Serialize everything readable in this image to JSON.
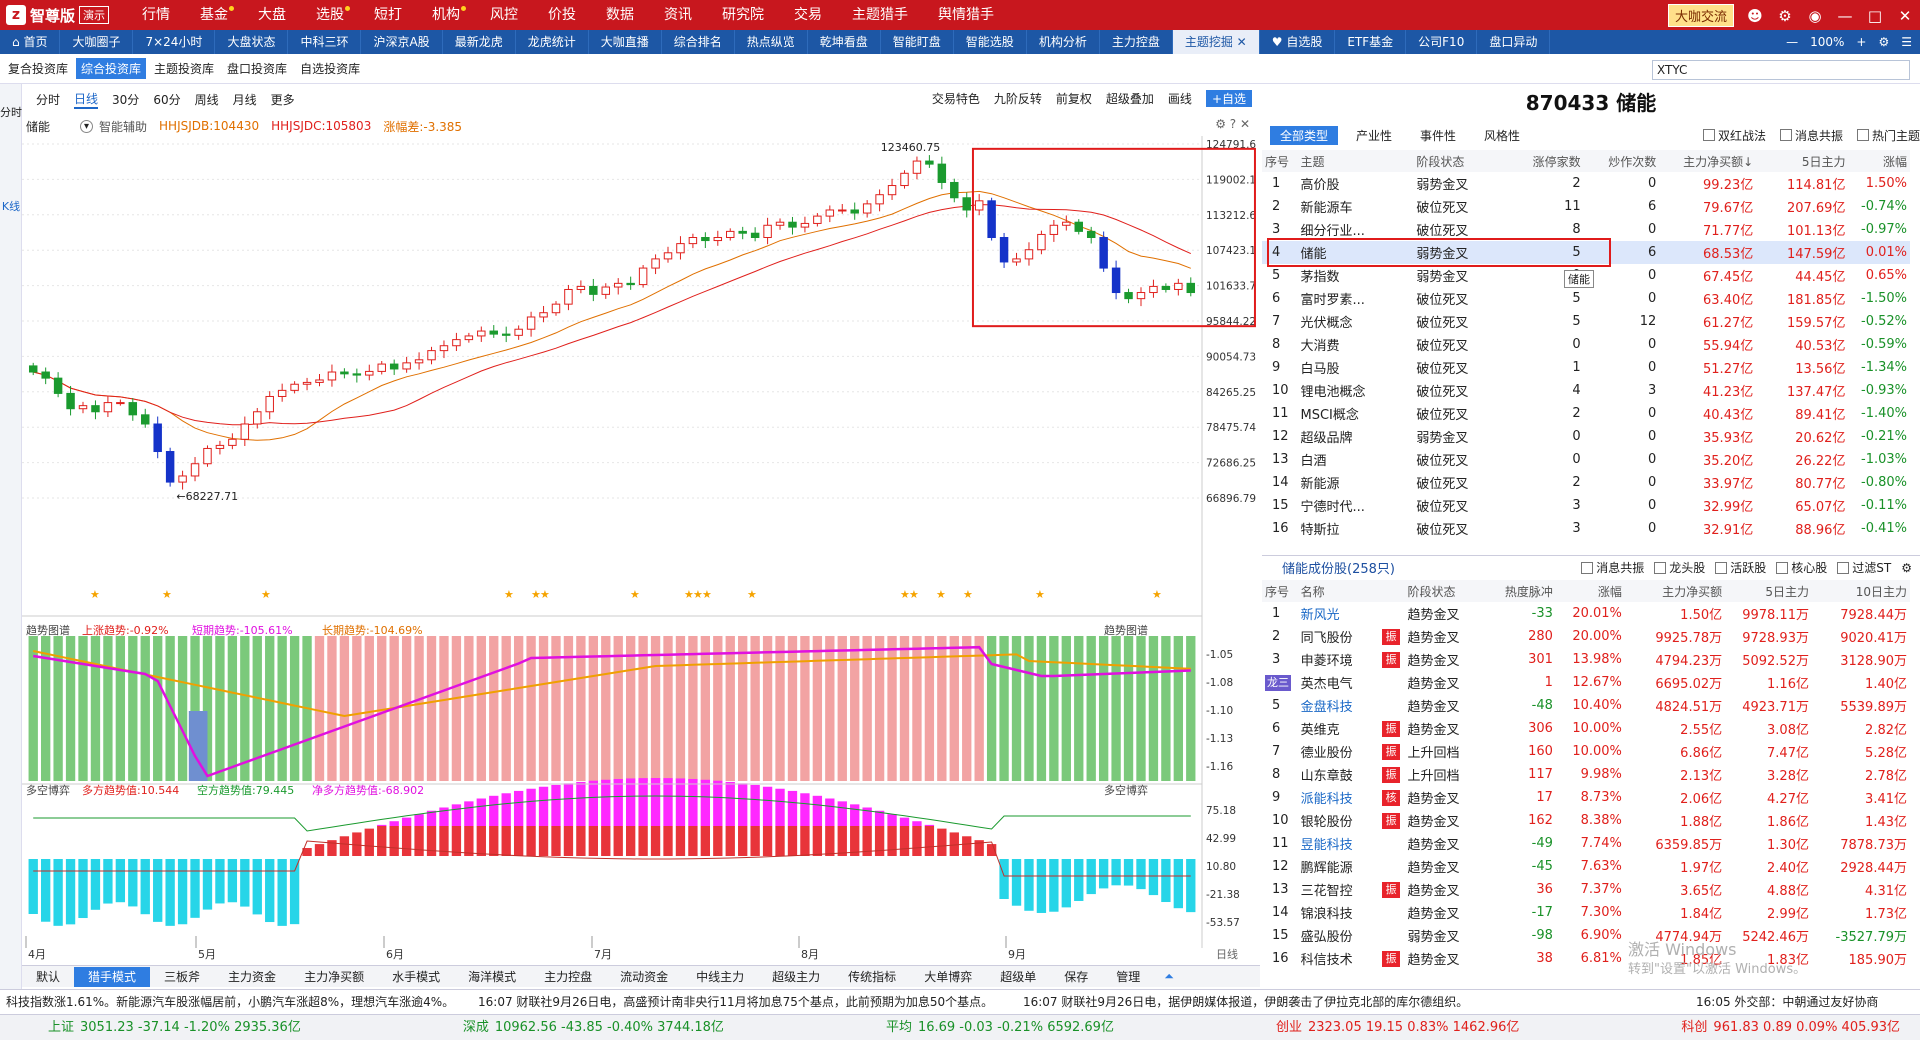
{
  "app": {
    "logo": "智尊版",
    "logo_glyph": "z",
    "demo": "演示"
  },
  "top_menu": [
    {
      "label": "行情",
      "dot": false
    },
    {
      "label": "基金",
      "dot": true
    },
    {
      "label": "大盘",
      "dot": false
    },
    {
      "label": "选股",
      "dot": true
    },
    {
      "label": "短打",
      "dot": false
    },
    {
      "label": "机构",
      "dot": true
    },
    {
      "label": "风控",
      "dot": false
    },
    {
      "label": "价投",
      "dot": false
    },
    {
      "label": "数据",
      "dot": false
    },
    {
      "label": "资讯",
      "dot": false
    },
    {
      "label": "研究院",
      "dot": false
    },
    {
      "label": "交易",
      "dot": false
    },
    {
      "label": "主题猎手",
      "dot": false
    },
    {
      "label": "舆情猎手",
      "dot": false
    }
  ],
  "top_right": {
    "community": "大咖交流"
  },
  "nav_tabs": [
    "首页",
    "大咖圈子",
    "7×24小时",
    "大盘状态",
    "中科三环",
    "沪深京A股",
    "最新龙虎",
    "龙虎统计",
    "大咖直播",
    "综合排名",
    "热点纵览",
    "乾坤看盘",
    "智能盯盘",
    "智能选股",
    "机构分析",
    "主力控盘",
    "主题挖掘",
    "自选股",
    "ETF基金",
    "公司F10",
    "盘口异动"
  ],
  "nav_active": "主题挖掘",
  "zoom": "100%",
  "sub_tabs": [
    "复合投资库",
    "综合投资库",
    "主题投资库",
    "盘口投资库",
    "自选投资库"
  ],
  "sub_active": "综合投资库",
  "search": {
    "value": "XTYC"
  },
  "left_strip": [
    "分时",
    "K线"
  ],
  "chart_toolbar": {
    "periods": [
      "分时",
      "日线",
      "30分",
      "60分",
      "周线",
      "月线",
      "更多"
    ],
    "active": "日线",
    "right": [
      "交易特色",
      "九阶反转",
      "前复权",
      "超级叠加",
      "画线",
      "+自选"
    ]
  },
  "kinfo": {
    "name": "储能",
    "assist": "智能辅助",
    "hh1": "HHJSJDB:104430",
    "hh2": "HHJSJDC:105803",
    "ratio": "涨幅差:-3.385"
  },
  "panel_titles": {
    "trend": "趋势图谱",
    "trend_up": "上涨趋势:-0.92%",
    "trend_short": "短期趋势:-105.61%",
    "trend_long": "长期趋势:-104.69%",
    "game": "多空博弈",
    "game_long": "多方趋势值:10.544",
    "game_short": "空方趋势值:79.445",
    "game_net": "净多方趋势值:-68.902"
  },
  "months": [
    "4月",
    "5月",
    "6月",
    "7月",
    "8月",
    "9月"
  ],
  "right_axis_label": "日线",
  "stock_title": "870433 储能",
  "right_tabs": {
    "items": [
      "全部类型",
      "产业性",
      "事件性",
      "风格性"
    ],
    "active": "全部类型",
    "checks": [
      "双红战法",
      "消息共振",
      "热门主题"
    ]
  },
  "theme_table": {
    "headers": [
      "序号",
      "主题",
      "阶段状态",
      "涨停家数",
      "炒作次数",
      "主力净买额↓",
      "5日主力",
      "涨幅"
    ],
    "rows": [
      [
        "1",
        "高价股",
        "弱势金叉",
        "2",
        "0",
        "99.23亿",
        "114.81亿",
        "1.50%"
      ],
      [
        "2",
        "新能源车",
        "破位死叉",
        "11",
        "6",
        "79.67亿",
        "207.69亿",
        "-0.74%"
      ],
      [
        "3",
        "细分行业...",
        "破位死叉",
        "8",
        "0",
        "71.77亿",
        "101.13亿",
        "-0.97%"
      ],
      [
        "4",
        "储能",
        "弱势金叉",
        "5",
        "6",
        "68.53亿",
        "147.59亿",
        "0.01%"
      ],
      [
        "5",
        "茅指数",
        "弱势金叉",
        "0",
        "0",
        "67.45亿",
        "44.45亿",
        "0.65%"
      ],
      [
        "6",
        "富时罗素...",
        "破位死叉",
        "5",
        "0",
        "63.40亿",
        "181.85亿",
        "-1.50%"
      ],
      [
        "7",
        "光伏概念",
        "破位死叉",
        "5",
        "12",
        "61.27亿",
        "159.57亿",
        "-0.52%"
      ],
      [
        "8",
        "大消费",
        "破位死叉",
        "0",
        "0",
        "55.94亿",
        "40.53亿",
        "-0.59%"
      ],
      [
        "9",
        "白马股",
        "破位死叉",
        "1",
        "0",
        "51.27亿",
        "13.56亿",
        "-1.34%"
      ],
      [
        "10",
        "锂电池概念",
        "破位死叉",
        "4",
        "3",
        "41.23亿",
        "137.47亿",
        "-0.93%"
      ],
      [
        "11",
        "MSCI概念",
        "破位死叉",
        "2",
        "0",
        "40.43亿",
        "89.41亿",
        "-1.40%"
      ],
      [
        "12",
        "超级品牌",
        "弱势金叉",
        "0",
        "0",
        "35.93亿",
        "20.62亿",
        "-0.21%"
      ],
      [
        "13",
        "白酒",
        "破位死叉",
        "0",
        "0",
        "35.20亿",
        "26.22亿",
        "-1.03%"
      ],
      [
        "14",
        "新能源",
        "破位死叉",
        "2",
        "0",
        "33.97亿",
        "80.77亿",
        "-0.80%"
      ],
      [
        "15",
        "宁德时代...",
        "破位死叉",
        "3",
        "0",
        "32.99亿",
        "65.07亿",
        "-0.11%"
      ],
      [
        "16",
        "特斯拉",
        "破位死叉",
        "3",
        "0",
        "32.91亿",
        "88.96亿",
        "-0.41%"
      ]
    ],
    "selected": 3,
    "tooltip": "储能"
  },
  "component": {
    "title": "储能成份股(258只)",
    "checks": [
      "消息共振",
      "龙头股",
      "活跃股",
      "核心股",
      "过滤ST"
    ],
    "headers": [
      "序号",
      "名称",
      "",
      "阶段状态",
      "热度脉冲",
      "涨幅",
      "主力净买额",
      "5日主力",
      "10日主力"
    ],
    "rows": [
      [
        "1",
        "新风光",
        "",
        "趋势金叉",
        "-33",
        "20.01%",
        "1.50亿",
        "9978.11万",
        "7928.44万"
      ],
      [
        "2",
        "同飞股份",
        "振",
        "趋势金叉",
        "280",
        "20.00%",
        "9925.78万",
        "9728.93万",
        "9020.41万"
      ],
      [
        "3",
        "申菱环境",
        "振",
        "趋势金叉",
        "301",
        "13.98%",
        "4794.23万",
        "5092.52万",
        "3128.90万"
      ],
      [
        "龙三",
        "英杰电气",
        "",
        "趋势金叉",
        "1",
        "12.67%",
        "6695.02万",
        "1.16亿",
        "1.40亿"
      ],
      [
        "5",
        "金盘科技",
        "",
        "趋势金叉",
        "-48",
        "10.40%",
        "4824.51万",
        "4923.71万",
        "5539.89万"
      ],
      [
        "6",
        "英维克",
        "振",
        "趋势金叉",
        "306",
        "10.00%",
        "2.55亿",
        "3.08亿",
        "2.82亿"
      ],
      [
        "7",
        "德业股份",
        "振",
        "上升回档",
        "160",
        "10.00%",
        "6.86亿",
        "7.47亿",
        "5.28亿"
      ],
      [
        "8",
        "山东章鼓",
        "振",
        "上升回档",
        "117",
        "9.98%",
        "2.13亿",
        "3.28亿",
        "2.78亿"
      ],
      [
        "9",
        "派能科技",
        "核",
        "趋势金叉",
        "17",
        "8.73%",
        "2.06亿",
        "4.27亿",
        "3.41亿"
      ],
      [
        "10",
        "银轮股份",
        "振",
        "趋势金叉",
        "162",
        "8.38%",
        "1.88亿",
        "1.86亿",
        "1.43亿"
      ],
      [
        "11",
        "昱能科技",
        "",
        "趋势金叉",
        "-49",
        "7.74%",
        "6359.85万",
        "1.30亿",
        "7878.73万"
      ],
      [
        "12",
        "鹏辉能源",
        "",
        "趋势金叉",
        "-45",
        "7.63%",
        "1.97亿",
        "2.40亿",
        "2928.44万"
      ],
      [
        "13",
        "三花智控",
        "振",
        "趋势金叉",
        "36",
        "7.37%",
        "3.65亿",
        "4.88亿",
        "4.31亿"
      ],
      [
        "14",
        "锦浪科技",
        "",
        "趋势金叉",
        "-17",
        "7.30%",
        "1.84亿",
        "2.99亿",
        "1.73亿"
      ],
      [
        "15",
        "盛弘股份",
        "",
        "弱势金叉",
        "-98",
        "6.90%",
        "4774.94万",
        "5242.46万",
        "-3527.79万"
      ],
      [
        "16",
        "科信技术",
        "振",
        "趋势金叉",
        "38",
        "6.81%",
        "1.85亿",
        "1.83亿",
        "185.90万"
      ]
    ]
  },
  "bottom_tabs": {
    "items": [
      "默认",
      "猎手模式",
      "三板斧",
      "主力资金",
      "主力净买额",
      "水手模式",
      "海洋模式",
      "主力控盘",
      "流动资金",
      "中线主力",
      "超级主力",
      "传统指标",
      "大单博弈",
      "超级单",
      "保存",
      "管理"
    ],
    "active": "猎手模式"
  },
  "news": {
    "left": "科技指数涨1.61%。新能源汽车股涨幅居前，小鹏汽车涨超8%，理想汽车涨逾4%。",
    "mid": "16:07 财联社9月26日电，高盛预计南非央行11月将加息75个基点，此前预期为加息50个基点。",
    "mid2": "16:07 财联社9月26日电，据伊朗媒体报道，伊朗袭击了伊拉克北部的库尔德组织。",
    "right": "16:05 外交部：中朝通过友好协商"
  },
  "ticker": [
    {
      "name": "上证",
      "vals": "3051.23  -37.14  -1.20%  2935.36亿",
      "c": "g"
    },
    {
      "name": "深成",
      "vals": "10962.56  -43.85  -0.40%  3744.18亿",
      "c": "g"
    },
    {
      "name": "平均",
      "vals": "16.69  -0.03  -0.21%  6592.69亿",
      "c": "g"
    },
    {
      "name": "创业",
      "vals": "2323.05  19.15  0.83%  1462.96亿",
      "c": "r"
    },
    {
      "name": "科创",
      "vals": "961.83  0.89  0.09%  405.93亿",
      "c": "r"
    }
  ],
  "watermark": {
    "line1": "激活 Windows",
    "line2": "转到\"设置\"以激活 Windows。"
  },
  "chart_data": {
    "type": "candlestick",
    "title": "储能",
    "price_axis": {
      "ticks": [
        "124791.6",
        "119002.1",
        "113212.6",
        "107423.1",
        "101633.7",
        "95844.22",
        "90054.73",
        "84265.25",
        "78475.74",
        "72686.25",
        "66896.79"
      ],
      "min": 66896.79,
      "max": 124791.6
    },
    "high_label": "123460.75",
    "low_label": "68227.71",
    "trend_axis": {
      "ticks": [
        "-1.05",
        "-1.08",
        "-1.10",
        "-1.13",
        "-1.16"
      ]
    },
    "game_axis": {
      "ticks": [
        "75.18",
        "42.99",
        "10.80",
        "-21.38",
        "-53.57"
      ]
    },
    "closes": [
      87500,
      86500,
      84000,
      81500,
      82000,
      81000,
      82500,
      82500,
      80500,
      79000,
      74500,
      69500,
      70500,
      72500,
      75000,
      75500,
      76500,
      79000,
      81000,
      83500,
      84500,
      85500,
      85800,
      86200,
      87500,
      87200,
      87000,
      87600,
      88800,
      88000,
      89000,
      89500,
      91000,
      91800,
      92800,
      93400,
      94200,
      93700,
      93500,
      94500,
      96500,
      97200,
      98600,
      101000,
      101500,
      100200,
      101400,
      102000,
      101800,
      104500,
      106000,
      107000,
      108500,
      109500,
      109000,
      109500,
      110500,
      110200,
      109500,
      111500,
      112000,
      111200,
      111800,
      113000,
      114000,
      114000,
      113500,
      115000,
      116500,
      118000,
      120000,
      122000,
      121500,
      118500,
      116000,
      114000,
      115500,
      109500,
      105500,
      106000,
      107500,
      110000,
      111500,
      112000,
      110500,
      109500,
      104500,
      100500,
      99500,
      100500,
      101500,
      101000,
      102000,
      100500
    ],
    "stars": [
      7,
      15,
      26,
      53,
      56,
      57,
      67,
      73,
      74,
      75,
      80,
      97,
      98,
      101,
      104,
      112,
      125
    ]
  }
}
